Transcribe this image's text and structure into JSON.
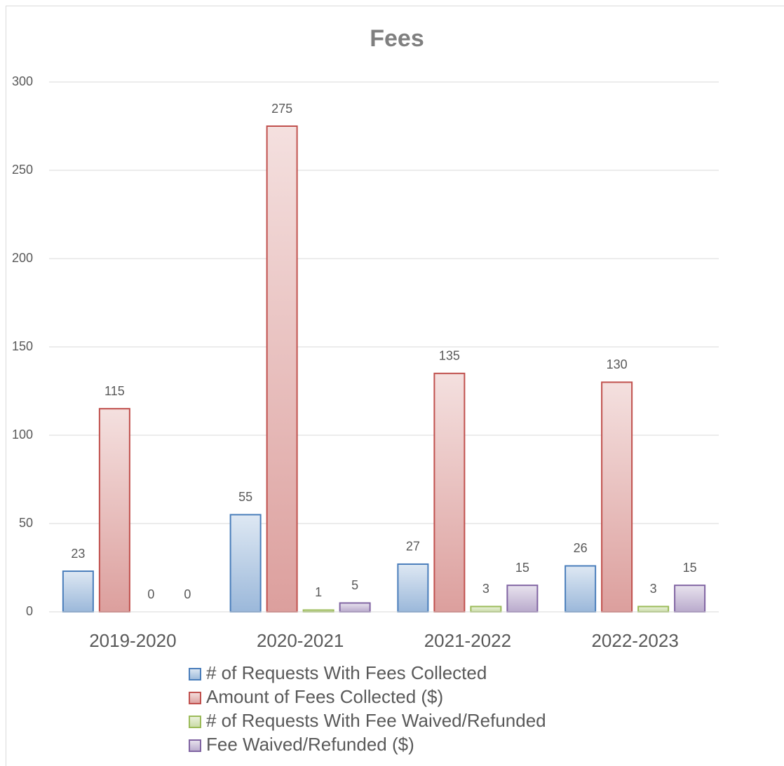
{
  "chart_data": {
    "type": "bar",
    "title": "Fees",
    "categories": [
      "2019-2020",
      "2020-2021",
      "2021-2022",
      "2022-2023"
    ],
    "series": [
      {
        "name": "# of Requests With Fees Collected",
        "color": "#4a7ebb",
        "values": [
          23,
          55,
          27,
          26
        ]
      },
      {
        "name": "Amount of Fees Collected ($)",
        "color": "#c0504d",
        "values": [
          115,
          275,
          135,
          130
        ]
      },
      {
        "name": "# of Requests With Fee Waived/Refunded",
        "color": "#9bbb59",
        "values": [
          0,
          1,
          3,
          3
        ]
      },
      {
        "name": "Fee Waived/Refunded ($)",
        "color": "#8064a2",
        "values": [
          0,
          5,
          15,
          15
        ]
      }
    ],
    "ylim": [
      0,
      300
    ],
    "yticks": [
      0,
      50,
      100,
      150,
      200,
      250,
      300
    ],
    "grid": true,
    "legend": "bottom"
  }
}
